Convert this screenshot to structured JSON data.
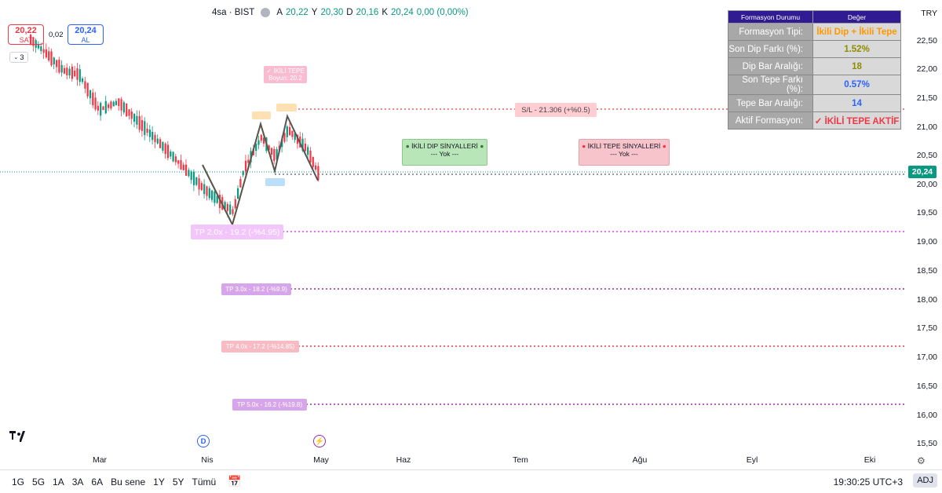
{
  "header": {
    "symbol": "4sa · BIST",
    "a_label": "A",
    "a_value": "20,22",
    "y_label": "Y",
    "y_value": "20,30",
    "d_label": "D",
    "d_value": "20,16",
    "k_label": "K",
    "k_value": "20,24",
    "change": "0,00 (0,00%)"
  },
  "trade": {
    "sell_price": "20,22",
    "sell_label": "SAT",
    "spread": "0,02",
    "buy_price": "20,24",
    "buy_label": "AL",
    "indicator_count": "3"
  },
  "currency": "TRY",
  "price_axis": [
    "22,50",
    "22,00",
    "21,50",
    "21,00",
    "20,50",
    "20,00",
    "19,50",
    "19,00",
    "18,50",
    "18,00",
    "17,50",
    "17,00",
    "16,50",
    "16,00",
    "15,50"
  ],
  "current_price": "20,24",
  "time_axis": [
    "Mar",
    "Nis",
    "May",
    "Haz",
    "Tem",
    "Ağu",
    "Eyl",
    "Eki"
  ],
  "table": {
    "col1": "Formasyon Durumu",
    "col2": "Değer",
    "rows": [
      {
        "key": "Formasyon Tipi:",
        "value": "İkili Dip + İkili Tepe",
        "color": "#ff9800"
      },
      {
        "key": "Son Dip Farkı (%):",
        "value": "1.52%",
        "color": "#8d8d00"
      },
      {
        "key": "Dip Bar Aralığı:",
        "value": "18",
        "color": "#8d8d00"
      },
      {
        "key": "Son Tepe Farkı (%):",
        "value": "0.57%",
        "color": "#2962ff"
      },
      {
        "key": "Tepe Bar Aralığı:",
        "value": "14",
        "color": "#2962ff"
      },
      {
        "key": "Aktif Formasyon:",
        "value": "✓ İKİLİ TEPE AKTİF",
        "color": "#f23645"
      }
    ]
  },
  "signals": {
    "dip_title": "İKİLİ DIP SİNYALLERİ",
    "dip_value": "--- Yok ---",
    "tepe_title": "İKİLİ TEPE SİNYALLERİ",
    "tepe_value": "--- Yok ---"
  },
  "chart_labels": {
    "ikili_tepe": "✓ İKİLİ TEPE",
    "boyun": "Boyun: 20.2",
    "sl": "S/L - 21.306 (+%0.5)",
    "tp2": "TP 2.0x - 19.2 (-%4.95)",
    "tp3": "TP 3.0x - 18.2 (-%9.9)",
    "tp4": "TP 4.0x - 17.2 (-%14.85)",
    "tp5": "TP 5.0x - 16.2 (-%19.8)"
  },
  "bottom_bar": {
    "ranges": [
      "1G",
      "5G",
      "1A",
      "3A",
      "6A",
      "Bu sene",
      "1Y",
      "5Y",
      "Tümü"
    ],
    "clock": "19:30:25 UTC+3",
    "adj": "ADJ"
  },
  "colors": {
    "up": "#089981",
    "down": "#f23645",
    "pattern_dip": "#fdd835",
    "pattern_line": "#555555"
  }
}
